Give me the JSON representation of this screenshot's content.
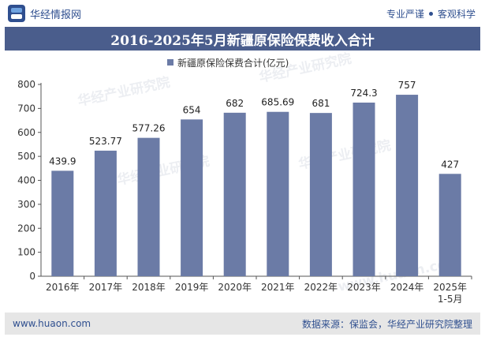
{
  "header": {
    "brand_name": "华经情报网",
    "tagline_left": "专业严谨",
    "tagline_right": "客观科学",
    "logo_icon": "huajing-logo-icon"
  },
  "title": "2016-2025年5月新疆原保险保费收入合计",
  "footer": {
    "website": "www.huaon.com",
    "source": "数据来源：保监会，华经产业研究院整理"
  },
  "watermarks": [
    "华经产业研究院",
    "华经产业研究院",
    "华经产业研究院",
    "华经产业研究院",
    "www.huaon.com"
  ],
  "chart_data": {
    "type": "bar",
    "categories": [
      "2016年",
      "2017年",
      "2018年",
      "2019年",
      "2020年",
      "2021年",
      "2022年",
      "2023年",
      "2024年",
      "2025年\n1-5月"
    ],
    "series": [
      {
        "name": "新疆原保险保费合计(亿元)",
        "values": [
          439.9,
          523.77,
          577.26,
          654,
          682,
          685.69,
          681,
          724.3,
          757,
          427
        ],
        "labels": [
          "439.9",
          "523.77",
          "577.26",
          "654",
          "682",
          "685.69",
          "681",
          "724.3",
          "757",
          "427"
        ]
      }
    ],
    "ylim": [
      0,
      800
    ],
    "yticks": [
      0,
      100,
      200,
      300,
      400,
      500,
      600,
      700,
      800
    ],
    "legend_position": "top-center",
    "grid": false,
    "bar_color": "#6b7ba6"
  }
}
